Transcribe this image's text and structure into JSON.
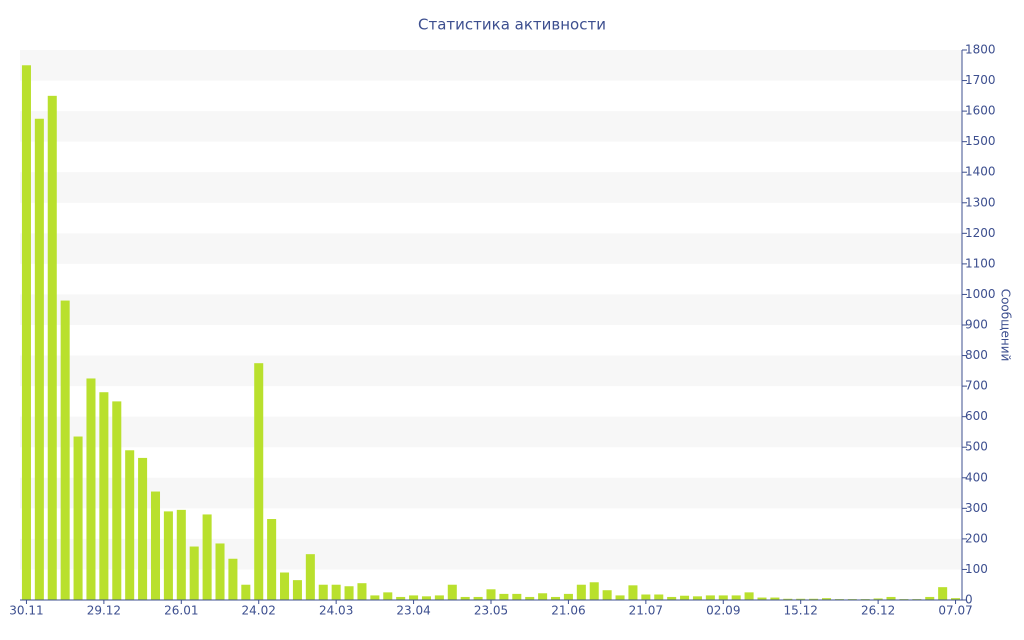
{
  "chart_data": {
    "type": "bar",
    "title": "Статистика активности",
    "y_label": "Сообщений",
    "y_axis_side": "right",
    "categories": [
      "30.11",
      null,
      null,
      null,
      null,
      null,
      "29.12",
      null,
      null,
      null,
      null,
      null,
      "26.01",
      null,
      null,
      null,
      null,
      null,
      "24.02",
      null,
      null,
      null,
      null,
      null,
      "24.03",
      null,
      null,
      null,
      null,
      null,
      "23.04",
      null,
      null,
      null,
      null,
      null,
      "23.05",
      null,
      null,
      null,
      null,
      null,
      "21.06",
      null,
      null,
      null,
      null,
      null,
      "21.07",
      null,
      null,
      null,
      null,
      null,
      "02.09",
      null,
      null,
      null,
      null,
      null,
      "15.12",
      null,
      null,
      null,
      null,
      null,
      "26.12",
      null,
      null,
      null,
      null,
      null,
      "07.07"
    ],
    "values": [
      1750,
      1575,
      1650,
      980,
      535,
      725,
      680,
      650,
      490,
      465,
      355,
      290,
      295,
      175,
      280,
      185,
      135,
      50,
      775,
      265,
      90,
      65,
      150,
      50,
      50,
      45,
      55,
      15,
      25,
      10,
      15,
      12,
      15,
      50,
      10,
      10,
      35,
      20,
      20,
      10,
      22,
      10,
      20,
      50,
      58,
      32,
      15,
      48,
      18,
      18,
      10,
      14,
      12,
      15,
      15,
      15,
      25,
      8,
      8,
      4,
      4,
      4,
      6,
      3,
      3,
      3,
      5,
      10,
      3,
      3,
      10,
      42,
      6
    ],
    "color": "#b9e02d",
    "ylim": [
      0,
      1800
    ],
    "yticks": [
      0,
      100,
      200,
      300,
      400,
      500,
      600,
      700,
      800,
      900,
      1000,
      1100,
      1200,
      1300,
      1400,
      1500,
      1600,
      1700,
      1800
    ],
    "grid": "bands"
  }
}
